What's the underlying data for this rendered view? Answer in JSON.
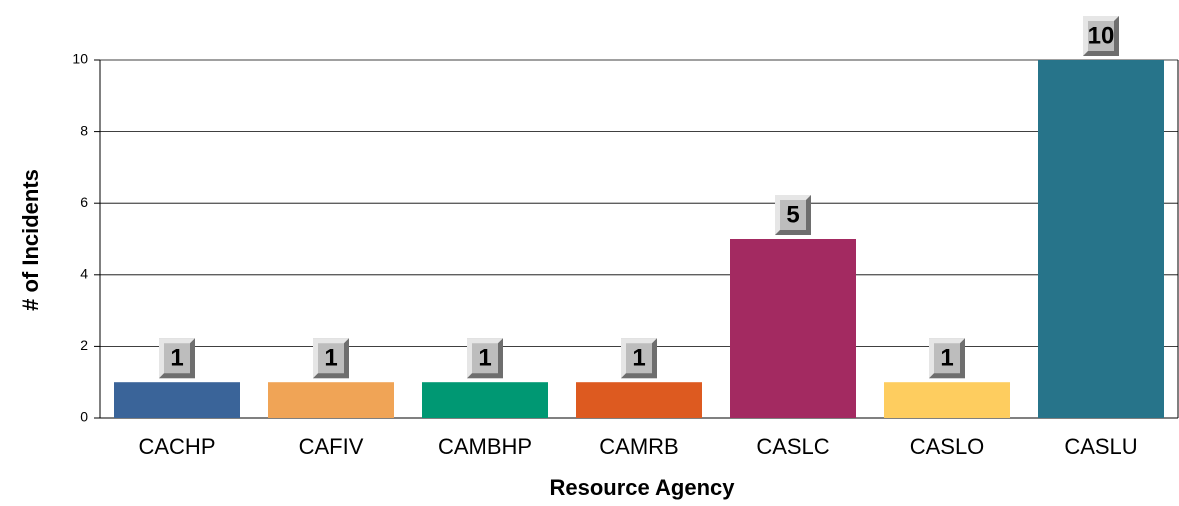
{
  "chart_data": {
    "type": "bar",
    "xlabel": "Resource Agency",
    "ylabel": "# of Incidents",
    "categories": [
      "CACHP",
      "CAFIV",
      "CAMBHP",
      "CAMRB",
      "CASLC",
      "CASLO",
      "CASLU"
    ],
    "values": [
      1,
      1,
      1,
      1,
      5,
      1,
      10
    ],
    "colors": [
      "#3a6499",
      "#f0a456",
      "#009873",
      "#dd5a20",
      "#a32a61",
      "#fecd5f",
      "#27748a"
    ],
    "ylim": [
      0,
      10
    ],
    "yticks": [
      0,
      2,
      4,
      6,
      8,
      10
    ],
    "grid": true
  }
}
